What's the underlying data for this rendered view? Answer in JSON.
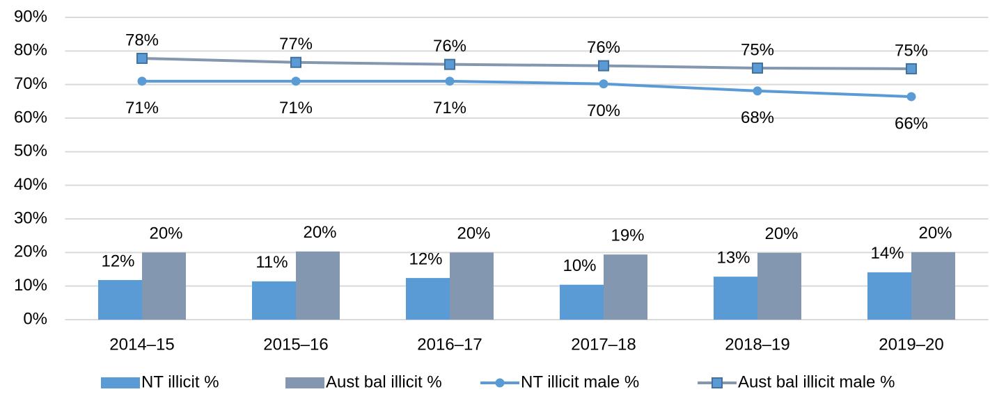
{
  "chart_data": {
    "type": "combo",
    "categories": [
      "2014–15",
      "2015–16",
      "2016–17",
      "2017–18",
      "2018–19",
      "2019–20"
    ],
    "ylim": [
      0,
      90
    ],
    "yticks": [
      {
        "value": 0,
        "label": "0%"
      },
      {
        "value": 10,
        "label": "10%"
      },
      {
        "value": 20,
        "label": "20%"
      },
      {
        "value": 30,
        "label": "30%"
      },
      {
        "value": 40,
        "label": "40%"
      },
      {
        "value": 50,
        "label": "50%"
      },
      {
        "value": 60,
        "label": "60%"
      },
      {
        "value": 70,
        "label": "70%"
      },
      {
        "value": 80,
        "label": "80%"
      },
      {
        "value": 90,
        "label": "90%"
      }
    ],
    "grid": true,
    "legend": "bottom",
    "series": [
      {
        "name": "NT illicit %",
        "type": "bar",
        "color": "#5b9bd5",
        "values": [
          11.8,
          11.4,
          12.4,
          10.4,
          12.8,
          14.1
        ],
        "value_labels": [
          "12%",
          "11%",
          "12%",
          "10%",
          "13%",
          "14%"
        ]
      },
      {
        "name": "Aust bal illicit %",
        "type": "bar",
        "color": "#8497b0",
        "values": [
          20.0,
          20.3,
          20.0,
          19.4,
          19.9,
          20.1
        ],
        "value_labels": [
          "20%",
          "20%",
          "20%",
          "19%",
          "20%",
          "20%"
        ]
      },
      {
        "name": "NT illicit male %",
        "type": "line",
        "marker": "circle",
        "color": "#5b9bd5",
        "values": [
          71.0,
          71.0,
          71.0,
          70.2,
          68.1,
          66.4
        ],
        "value_labels": [
          "71%",
          "71%",
          "71%",
          "70%",
          "68%",
          "66%"
        ]
      },
      {
        "name": "Aust bal illicit male %",
        "type": "line",
        "marker": "square",
        "color": "#8497b0",
        "values": [
          77.8,
          76.6,
          76.0,
          75.6,
          74.9,
          74.7
        ],
        "value_labels": [
          "78%",
          "77%",
          "76%",
          "76%",
          "75%",
          "75%"
        ]
      }
    ]
  }
}
